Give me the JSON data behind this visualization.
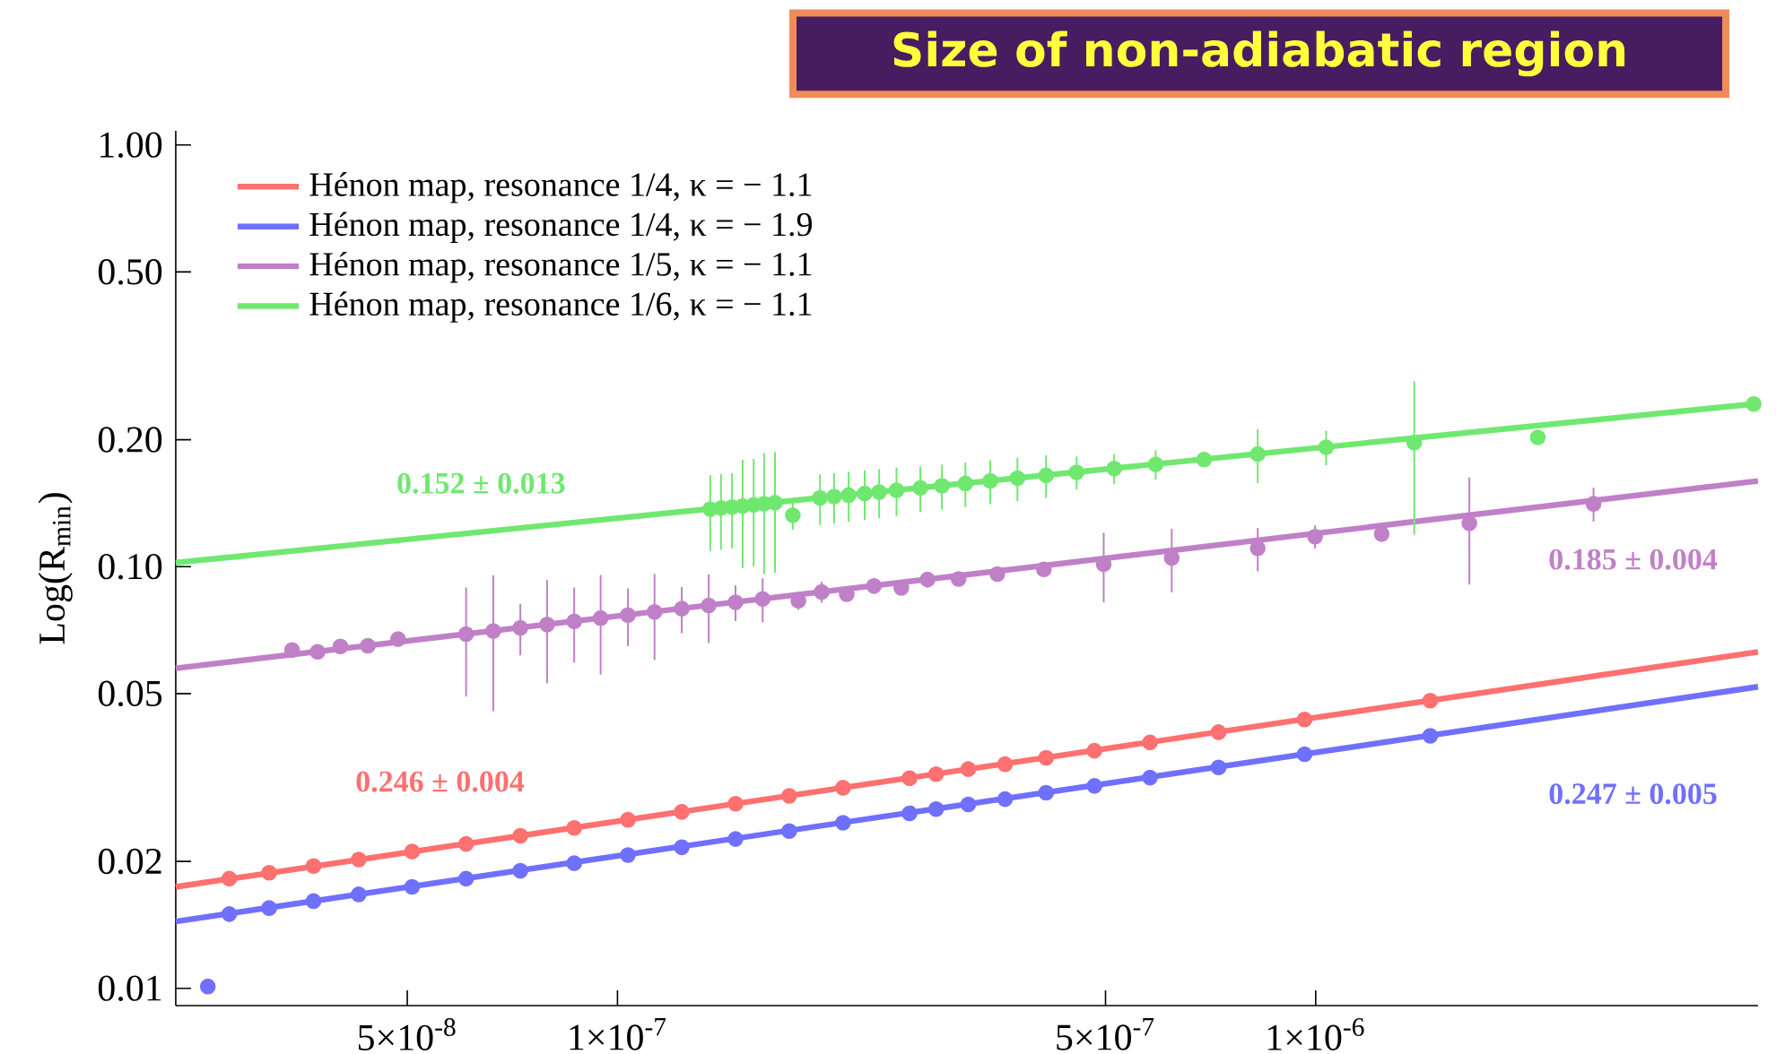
{
  "chart_data": {
    "type": "scatter",
    "title": "Size of non-adiabatic region",
    "ylabel": "Log(R$_{min}$)",
    "log": "xy",
    "legend": "top left",
    "xlim": [
      2.33e-08,
      4.3e-06
    ],
    "ylim": [
      0.0091,
      1.08
    ],
    "xticks": [
      {
        "value": 5e-08,
        "label": "5×10$^{-8}$"
      },
      {
        "value": 1e-07,
        "label": "1×10$^{-7}$"
      },
      {
        "value": 5e-07,
        "label": "5×10$^{-7}$"
      },
      {
        "value": 1e-06,
        "label": "1×10$^{-6}$"
      }
    ],
    "yticks": [
      0.01,
      {
        "value": 0.02,
        "label": "0.02"
      },
      {
        "value": 0.05,
        "label": "0.05"
      },
      {
        "value": 0.1,
        "label": "0.10"
      },
      {
        "value": 0.2,
        "label": "0.20"
      },
      {
        "value": 0.5,
        "label": "0.50"
      },
      {
        "value": 1,
        "label": "1.00"
      }
    ],
    "annotations": [
      "0.152 ± 0.013",
      "0.185 ± 0.004",
      "0.246 ± 0.004",
      "0.247 ± 0.005"
    ],
    "series": [
      {
        "type": "line",
        "marker": "none",
        "color": "#ff7070",
        "x": [
          2.33e-08,
          4.3e-06
        ],
        "values": [
          0.0174,
          0.0628
        ]
      },
      {
        "name": "Hénon map, resonance 1/4, κ = − 1.1",
        "marker": "circle",
        "color": "#ff7070",
        "x": [
          2.78e-08,
          3.17e-08,
          3.67e-08,
          4.26e-08,
          5.08e-08,
          6.07e-08,
          7.26e-08,
          8.67e-08,
          1.035e-07,
          1.236e-07,
          1.476e-07,
          1.762e-07,
          2.104e-07,
          2.62e-07,
          2.86e-07,
          3.18e-07,
          3.59e-07,
          4.11e-07,
          4.82e-07,
          5.79e-07,
          7.26e-07,
          9.64e-07,
          1.459e-06
        ],
        "values": [
          0.0182,
          0.0188,
          0.0195,
          0.0202,
          0.0211,
          0.022,
          0.023,
          0.024,
          0.0251,
          0.0262,
          0.0274,
          0.0286,
          0.0299,
          0.0315,
          0.0322,
          0.0331,
          0.034,
          0.0352,
          0.0366,
          0.0383,
          0.0405,
          0.0434,
          0.0481
        ],
        "errors": [
          0.0006,
          0.0006,
          0.0006,
          0.0006,
          0.0006,
          0.0006,
          0.0006,
          0.0006,
          0.0006,
          0.0006,
          0.0006,
          0.0006,
          0.0006,
          0.0006,
          0.0006,
          0.0006,
          0.0006,
          0.0006,
          0.0006,
          0.0006,
          0.0006,
          0.0006,
          0.0006
        ]
      },
      {
        "type": "line",
        "marker": "none",
        "color": "#7070ff",
        "x": [
          2.33e-08,
          4.3e-06
        ],
        "values": [
          0.0144,
          0.0519
        ]
      },
      {
        "name": "Hénon map, resonance 1/4, κ = − 1.9",
        "marker": "circle",
        "color": "#7070ff",
        "x": [
          2.59e-08,
          2.78e-08,
          3.17e-08,
          3.67e-08,
          4.26e-08,
          5.08e-08,
          6.07e-08,
          7.26e-08,
          8.67e-08,
          1.035e-07,
          1.236e-07,
          1.476e-07,
          1.762e-07,
          2.104e-07,
          2.62e-07,
          2.86e-07,
          3.18e-07,
          3.59e-07,
          4.11e-07,
          4.82e-07,
          5.79e-07,
          7.26e-07,
          9.64e-07,
          1.459e-06
        ],
        "values": [
          0.0101,
          0.015,
          0.0155,
          0.0161,
          0.0167,
          0.0174,
          0.0182,
          0.019,
          0.0198,
          0.0207,
          0.0216,
          0.0226,
          0.0236,
          0.0247,
          0.026,
          0.0266,
          0.0273,
          0.0281,
          0.0291,
          0.0302,
          0.0316,
          0.0334,
          0.0359,
          0.0397
        ],
        "errors": [
          null,
          0.0006,
          0.0006,
          0.0006,
          0.0006,
          0.0006,
          0.0006,
          0.0006,
          0.0006,
          0.0006,
          0.0006,
          0.0006,
          0.0006,
          0.0006,
          0.0006,
          0.0006,
          0.0006,
          0.0006,
          0.0006,
          0.0006,
          0.0006,
          0.0006,
          0.0006,
          0.0006
        ]
      },
      {
        "type": "line",
        "marker": "none",
        "color": "#c080c8",
        "x": [
          2.33e-08,
          4.3e-06
        ],
        "values": [
          0.0574,
          0.1596
        ]
      },
      {
        "name": "Hénon map, resonance 1/5, κ = − 1.1",
        "marker": "circle",
        "color": "#c080c8",
        "x": [
          3.42e-08,
          3.72e-08,
          4.01e-08,
          4.39e-08,
          4.85e-08,
          6.07e-08,
          6.64e-08,
          7.26e-08,
          7.93e-08,
          8.67e-08,
          9.46e-08,
          1.035e-07,
          1.13e-07,
          1.236e-07,
          1.351e-07,
          1.476e-07,
          1.614e-07,
          1.816e-07,
          1.961e-07,
          2.13e-07,
          2.33e-07,
          2.55e-07,
          2.78e-07,
          3.08e-07,
          3.5e-07,
          4.08e-07,
          4.97e-07,
          6.22e-07,
          8.26e-07,
          9.98e-07,
          1.243e-06,
          1.66e-06,
          2.5e-06
        ],
        "values": [
          0.0634,
          0.0628,
          0.0647,
          0.0649,
          0.0673,
          0.0692,
          0.0704,
          0.0716,
          0.0729,
          0.0742,
          0.0755,
          0.0768,
          0.0781,
          0.0795,
          0.0809,
          0.0823,
          0.0838,
          0.083,
          0.0871,
          0.086,
          0.09,
          0.089,
          0.0932,
          0.0935,
          0.096,
          0.0985,
          0.1013,
          0.1049,
          0.1105,
          0.1178,
          0.1195,
          0.1267,
          0.1409
        ],
        "errors": [
          0.002,
          0.002,
          0.002,
          0.002,
          0.002,
          0.02,
          0.025,
          0.01,
          0.02,
          0.015,
          0.02,
          0.012,
          0.018,
          0.01,
          0.015,
          0.008,
          0.01,
          0.004,
          0.005,
          0.003,
          0.004,
          0.003,
          0.004,
          0.003,
          0.002,
          0.003,
          0.019,
          0.018,
          0.013,
          0.0075,
          0.005,
          0.036,
          0.013
        ]
      },
      {
        "type": "line",
        "color": "#70e870",
        "x": [
          2.33e-08,
          4.3e-06
        ],
        "values": [
          0.1022,
          0.2437
        ]
      },
      {
        "name": "Hénon map, resonance 1/6, κ = − 1.1",
        "marker": "circle",
        "color": "#70e870",
        "x": [
          1.358e-07,
          1.407e-07,
          1.459e-07,
          1.511e-07,
          1.567e-07,
          1.622e-07,
          1.681e-07,
          1.783e-07,
          1.95e-07,
          2.043e-07,
          2.143e-07,
          2.26e-07,
          2.37e-07,
          2.51e-07,
          2.715e-07,
          2.915e-07,
          3.15e-07,
          3.42e-07,
          3.74e-07,
          4.11e-07,
          4.545e-07,
          5.145e-07,
          5.9e-07,
          6.92e-07,
          8.26e-07,
          1.035e-06,
          1.384e-06,
          2.08e-06,
          4.24e-06
        ],
        "values": [
          0.1369,
          0.1377,
          0.1385,
          0.1393,
          0.1401,
          0.141,
          0.1418,
          0.1324,
          0.1455,
          0.1466,
          0.1478,
          0.1491,
          0.1503,
          0.1518,
          0.1537,
          0.1555,
          0.1575,
          0.1597,
          0.1621,
          0.1646,
          0.1674,
          0.1709,
          0.1748,
          0.1795,
          0.1849,
          0.1919,
          0.197,
          0.2025,
          0.2431
        ],
        "errors": [
          0.028,
          0.028,
          0.028,
          0.04,
          0.04,
          0.045,
          0.045,
          0.01,
          0.02,
          0.02,
          0.02,
          0.02,
          0.02,
          0.02,
          0.019,
          0.019,
          0.019,
          0.019,
          0.019,
          0.019,
          0.015,
          0.014,
          0.014,
          null,
          0.027,
          0.018,
          0.078,
          null,
          null
        ]
      }
    ]
  }
}
